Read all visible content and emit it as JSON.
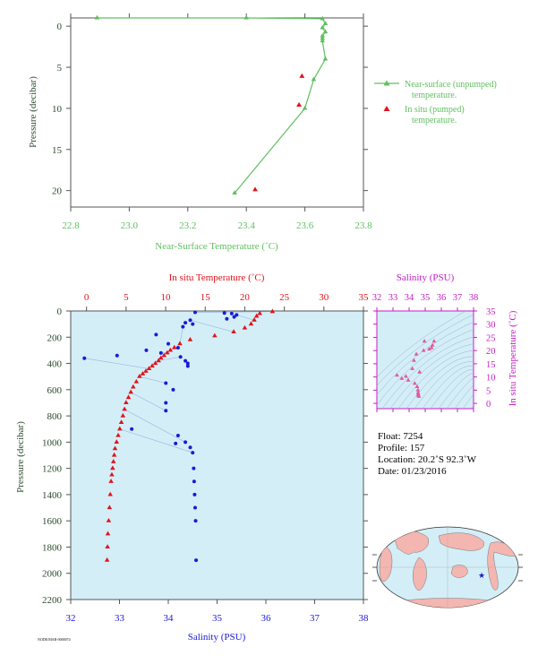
{
  "colors": {
    "green": "#5fbf5f",
    "red": "#e0141c",
    "blue": "#1a1ad6",
    "magenta": "#c41ec4",
    "axis_text": "#2b4a2b",
    "plot_bg": "#d4eef8",
    "map_land": "#f4b6b0",
    "map_ocean": "#d4eef8"
  },
  "info": {
    "float": "Float:  7254",
    "profile": "Profile:  157",
    "location": "Location:  20.2˚S  92.3˚W",
    "date": "Date:  01/23/2016"
  },
  "footer_code": "NODE/MAR-0000074",
  "chart_data": [
    {
      "type": "line",
      "title": "",
      "xlabel": "Near-Surface Temperature (˚C)",
      "ylabel": "Pressure (decibar)",
      "xlim": [
        22.8,
        23.8
      ],
      "ylim": [
        22,
        -1
      ],
      "x_ticks": [
        "22.8",
        "23.0",
        "23.2",
        "23.4",
        "23.6",
        "23.8"
      ],
      "y_ticks": [
        "0",
        "5",
        "10",
        "15",
        "20"
      ],
      "legend": {
        "placement": "right",
        "line1": "Near-surface (unpumped)",
        "line1b": "temperature.",
        "line2": "In situ (pumped)",
        "line2b": "temperature."
      },
      "series": [
        {
          "name": "Near-surface (unpumped) temperature.",
          "style": "line-triangle",
          "x": [
            22.89,
            23.4,
            23.66,
            23.67,
            23.66,
            23.67,
            23.66,
            23.66,
            23.66,
            23.67,
            23.63,
            23.6,
            23.36
          ],
          "y": [
            -1.0,
            -1.0,
            -0.9,
            -0.3,
            0.2,
            0.7,
            1.2,
            1.5,
            1.8,
            4.0,
            6.5,
            10.0,
            20.3
          ]
        },
        {
          "name": "In situ (pumped) temperature.",
          "style": "triangle",
          "x": [
            23.59,
            23.58,
            23.43
          ],
          "y": [
            6.1,
            9.6,
            19.9
          ]
        }
      ]
    },
    {
      "type": "scatter",
      "title": "",
      "xlabel": "Salinity (PSU)",
      "ylabel": "Pressure (decibar)",
      "top_xlabel": "In situ Temperature (˚C)",
      "xlim": [
        32,
        38
      ],
      "top_xlim": [
        -2,
        35
      ],
      "ylim": [
        2200,
        0
      ],
      "x_ticks": [
        "32",
        "33",
        "34",
        "35",
        "36",
        "37",
        "38"
      ],
      "top_x_ticks": [
        "0",
        "5",
        "10",
        "15",
        "20",
        "25",
        "30",
        "35"
      ],
      "y_ticks": [
        "0",
        "200",
        "400",
        "600",
        "800",
        "1000",
        "1200",
        "1400",
        "1600",
        "1800",
        "2000",
        "2200"
      ],
      "series": [
        {
          "name": "In situ Temperature (˚C)",
          "axis": "top",
          "x": [
            23.5,
            21.9,
            21.5,
            21.2,
            20.8,
            20.0,
            18.6,
            16.2,
            13.1,
            11.8,
            11.1,
            10.6,
            10.2,
            9.8,
            9.4,
            9.1,
            8.7,
            8.3,
            7.9,
            7.5,
            7.1,
            6.7,
            6.3,
            5.9,
            5.6,
            5.3,
            5.0,
            4.8,
            4.6,
            4.4,
            4.2,
            4.0,
            3.8,
            3.6,
            3.5,
            3.4,
            3.3,
            3.2,
            3.1,
            3.0,
            2.9,
            2.8,
            2.7,
            2.65,
            2.6
          ],
          "y": [
            5,
            20,
            40,
            70,
            100,
            130,
            160,
            190,
            220,
            250,
            280,
            300,
            320,
            340,
            360,
            380,
            400,
            420,
            440,
            460,
            480,
            500,
            540,
            580,
            620,
            660,
            700,
            750,
            800,
            850,
            900,
            950,
            1000,
            1050,
            1100,
            1150,
            1200,
            1250,
            1300,
            1400,
            1500,
            1600,
            1700,
            1800,
            1900
          ]
        },
        {
          "name": "Salinity (PSU)",
          "axis": "bottom",
          "x": [
            34.55,
            35.15,
            35.3,
            35.4,
            35.35,
            35.2,
            34.45,
            34.35,
            34.5,
            34.3,
            33.75,
            33.55,
            33.85,
            34.0,
            34.2,
            34.25,
            34.35,
            34.4,
            32.28,
            32.95,
            34.4,
            33.95,
            34.1,
            33.95,
            33.95,
            33.25,
            34.2,
            34.35,
            34.15,
            34.45,
            34.5,
            34.52,
            34.53,
            34.54,
            34.55,
            34.56,
            34.57
          ],
          "y": [
            10,
            15,
            20,
            30,
            45,
            60,
            70,
            90,
            100,
            120,
            180,
            300,
            320,
            250,
            280,
            350,
            380,
            400,
            360,
            340,
            420,
            550,
            600,
            700,
            760,
            900,
            950,
            1000,
            1010,
            1040,
            1080,
            1200,
            1300,
            1400,
            1500,
            1600,
            1900
          ]
        }
      ]
    },
    {
      "type": "scatter",
      "title": "",
      "top_xlabel": "Salinity (PSU)",
      "right_ylabel": "In situ Temperature (˚C)",
      "xlim": [
        32,
        38
      ],
      "ylim": [
        -2,
        35
      ],
      "x_ticks": [
        "32",
        "33",
        "34",
        "35",
        "36",
        "37",
        "38"
      ],
      "y_ticks": [
        "0",
        "5",
        "10",
        "15",
        "20",
        "25",
        "30",
        "35"
      ],
      "series": [
        {
          "name": "T-S",
          "x": [
            35.55,
            35.45,
            35.4,
            35.25,
            34.95,
            34.9,
            34.45,
            34.3,
            34.2,
            34.65,
            33.25,
            33.8,
            33.55,
            33.95,
            34.35,
            34.5,
            34.55,
            34.56,
            34.57,
            34.58,
            34.6
          ],
          "y": [
            23.5,
            22.0,
            21.0,
            20.5,
            23.5,
            20.0,
            18.6,
            16.2,
            13.1,
            11.8,
            10.6,
            10.2,
            9.4,
            8.7,
            7.5,
            6.3,
            5.0,
            4.0,
            3.4,
            3.0,
            2.6
          ]
        }
      ]
    }
  ]
}
